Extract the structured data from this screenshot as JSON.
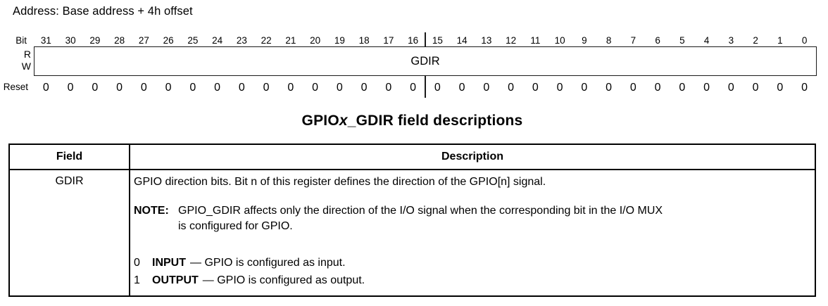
{
  "address_line": "Address: Base address + 4h offset",
  "register": {
    "bit_label": "Bit",
    "read_label": "R",
    "write_label": "W",
    "reset_label": "Reset",
    "name": "GDIR",
    "bits": [
      "31",
      "30",
      "29",
      "28",
      "27",
      "26",
      "25",
      "24",
      "23",
      "22",
      "21",
      "20",
      "19",
      "18",
      "17",
      "16",
      "15",
      "14",
      "13",
      "12",
      "11",
      "10",
      "9",
      "8",
      "7",
      "6",
      "5",
      "4",
      "3",
      "2",
      "1",
      "0"
    ],
    "resets": [
      "0",
      "0",
      "0",
      "0",
      "0",
      "0",
      "0",
      "0",
      "0",
      "0",
      "0",
      "0",
      "0",
      "0",
      "0",
      "0",
      "0",
      "0",
      "0",
      "0",
      "0",
      "0",
      "0",
      "0",
      "0",
      "0",
      "0",
      "0",
      "0",
      "0",
      "0",
      "0"
    ]
  },
  "table": {
    "title": {
      "pre": "GPIO",
      "var": "x",
      "post": "_GDIR field descriptions"
    },
    "headers": {
      "field": "Field",
      "description": "Description"
    },
    "row": {
      "field": "GDIR",
      "description": {
        "intro": "GPIO direction bits. Bit n of this register defines the direction of the GPIO[n] signal.",
        "note_label": "NOTE:",
        "note_line1": "GPIO_GDIR affects only the direction of the I/O signal when the corresponding bit in the I/O MUX",
        "note_line2": "is configured for GPIO.",
        "values": [
          {
            "value": "0",
            "name": "INPUT",
            "text": "— GPIO is configured as input."
          },
          {
            "value": "1",
            "name": "OUTPUT",
            "text": "— GPIO is configured as output."
          }
        ]
      }
    }
  },
  "colors": {
    "text": "#000000",
    "background": "#ffffff",
    "line": "#1a1a1a"
  }
}
